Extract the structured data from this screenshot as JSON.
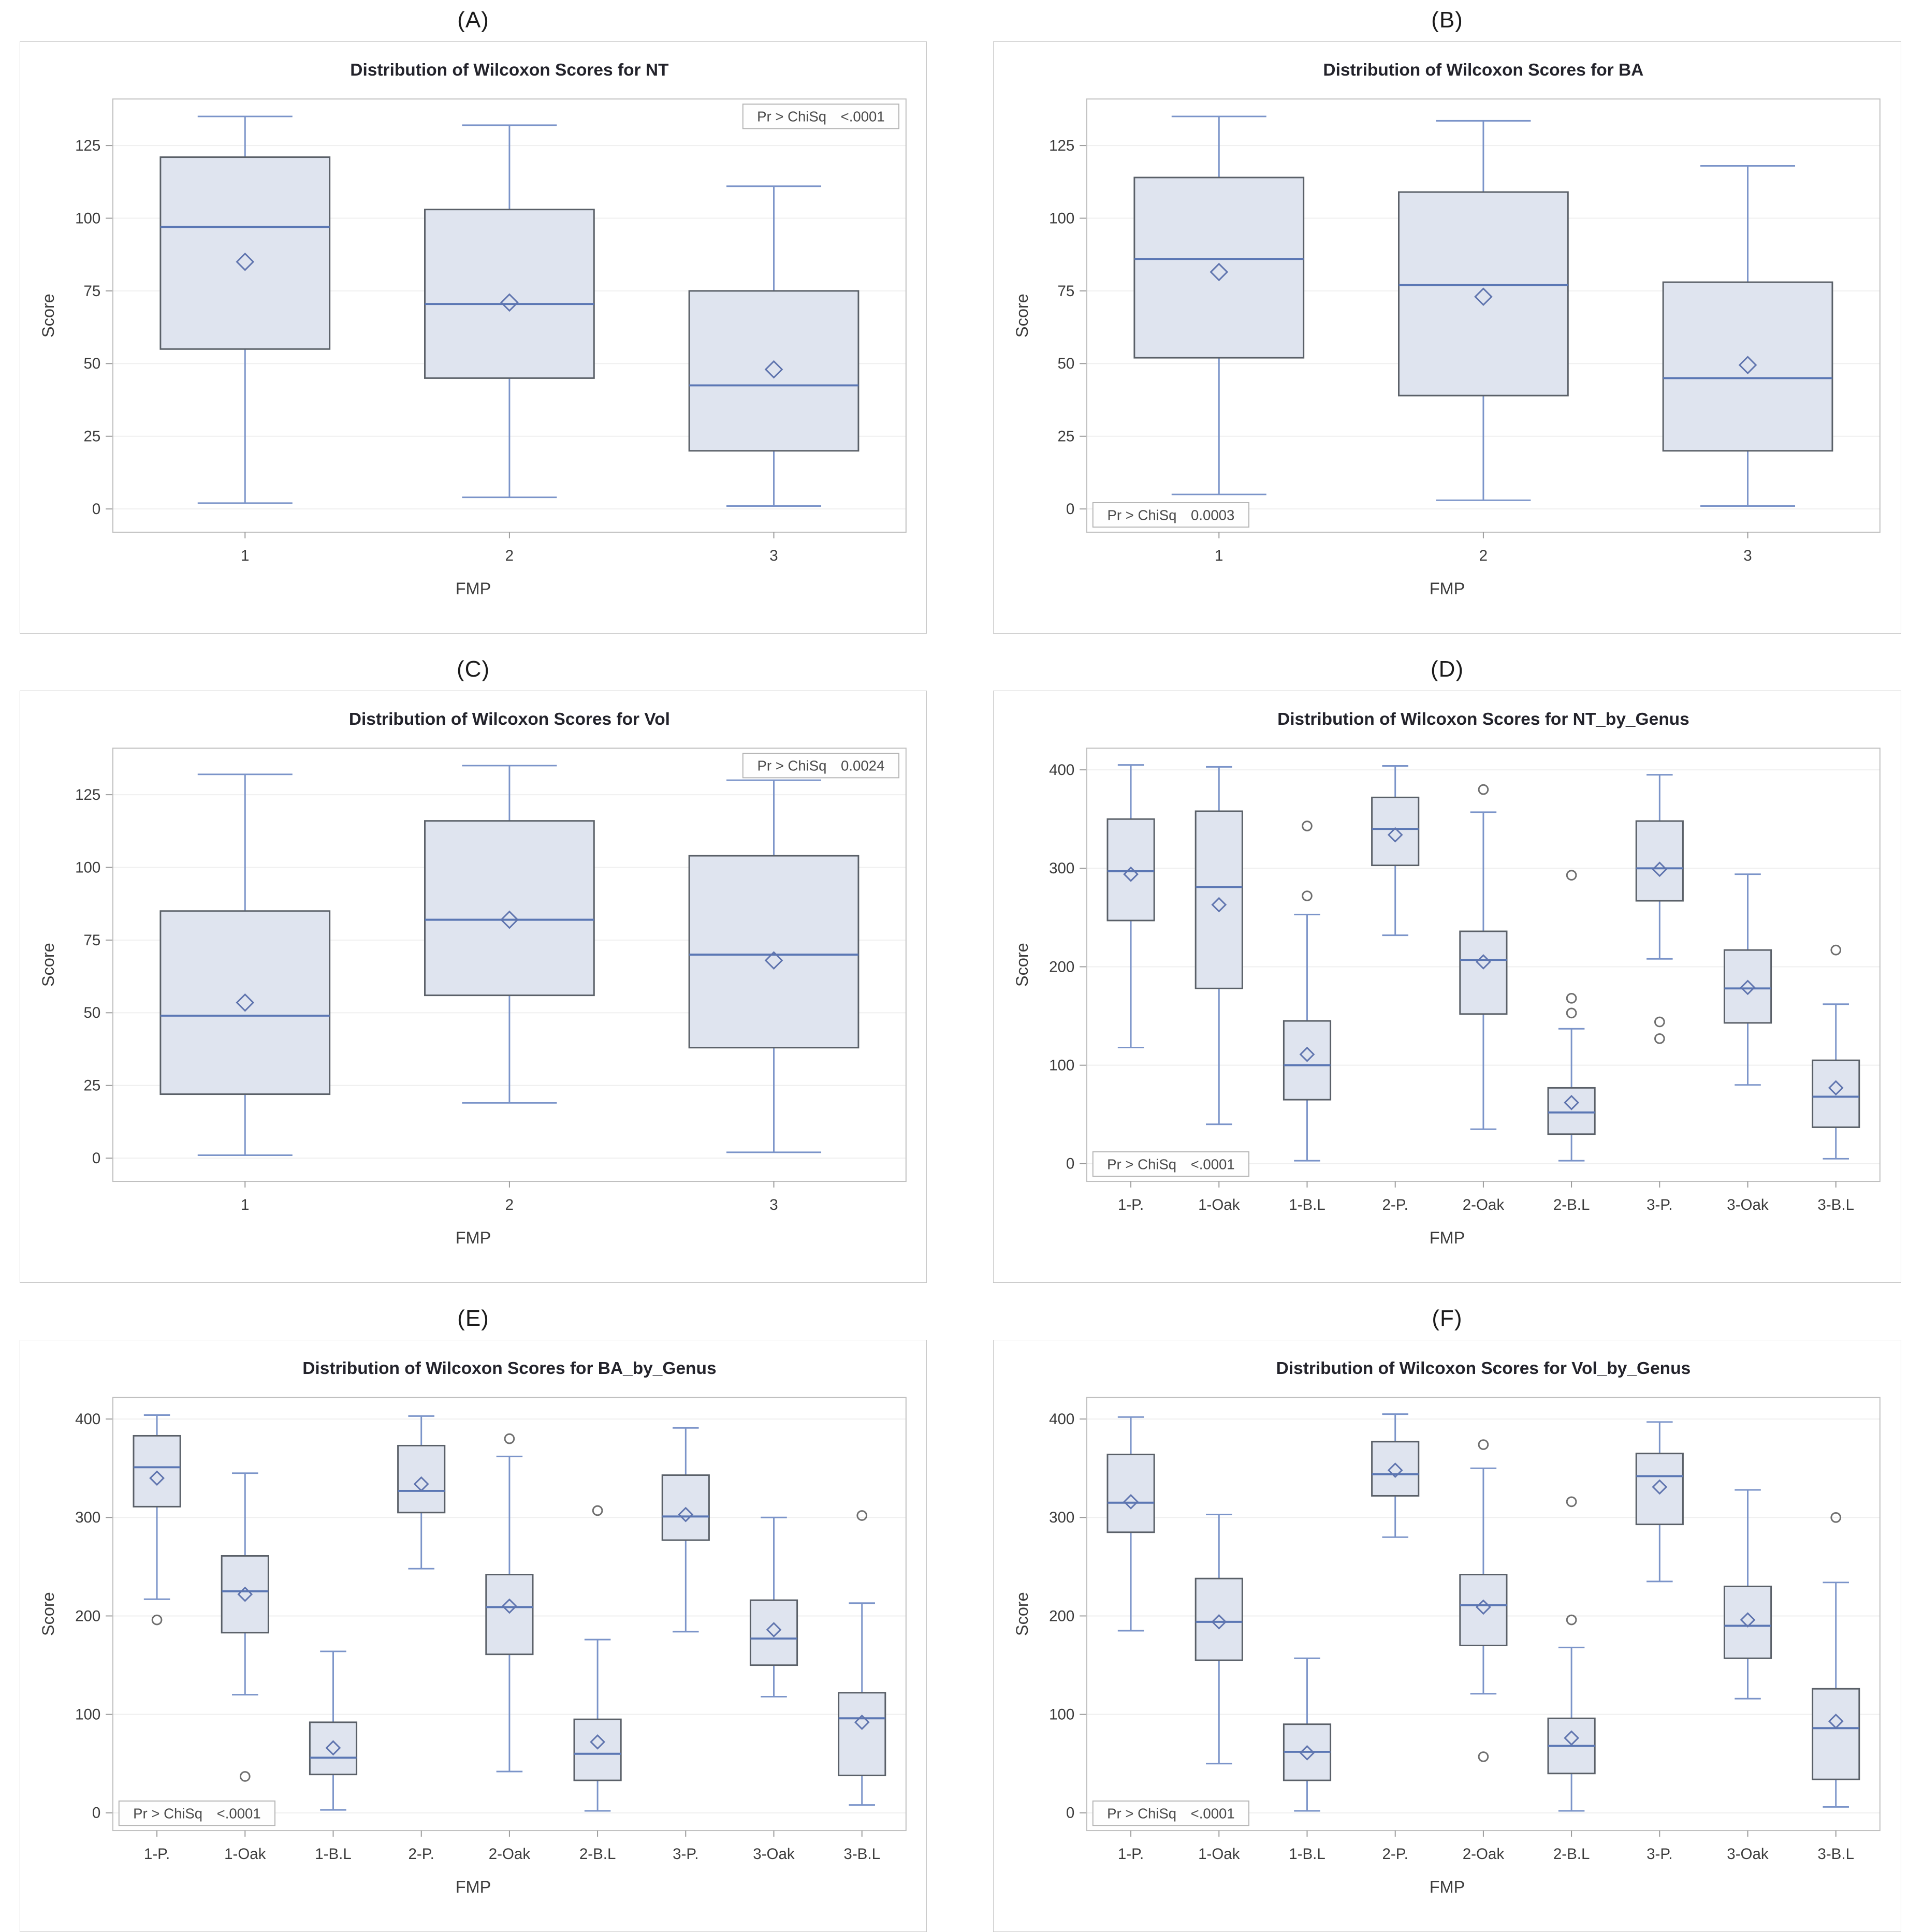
{
  "style": {
    "box_fill": "#dfe4ef",
    "box_stroke": "#5a6068",
    "median_blue": "#5b77b4",
    "whisker_blue": "#7b94c9",
    "mean_stroke": "#5f74ae",
    "outlier_stroke": "#6e6e6e",
    "grid_line": "#efefef",
    "frame_line": "#bfbfbf",
    "tick_mark": "#9a9a9a",
    "axis_text": "#3c3c3c",
    "title_text": "#23232b",
    "stat_border": "#b5b5b5",
    "stat_bg": "#fefefe",
    "stat_text": "#4a4a4a"
  },
  "chart_data": [
    {
      "tag": "(A)",
      "type": "box",
      "title": "Distribution of Wilcoxon Scores for NT",
      "xlabel": "FMP",
      "ylabel": "Score",
      "yticks": [
        0,
        25,
        50,
        75,
        100,
        125
      ],
      "ylim": [
        -8,
        141
      ],
      "stat_label": "Pr > ChiSq",
      "stat_value": "<.0001",
      "stat_pos": "top-right",
      "categories": [
        "1",
        "2",
        "3"
      ],
      "boxes": [
        {
          "low": 2,
          "q1": 55,
          "median": 97,
          "q3": 121,
          "high": 135,
          "mean": 85,
          "outliers": []
        },
        {
          "low": 4,
          "q1": 45,
          "median": 70.5,
          "q3": 103,
          "high": 132,
          "mean": 71,
          "outliers": []
        },
        {
          "low": 1,
          "q1": 20,
          "median": 42.5,
          "q3": 75,
          "high": 111,
          "mean": 48,
          "outliers": []
        }
      ]
    },
    {
      "tag": "(B)",
      "type": "box",
      "title": "Distribution of Wilcoxon Scores for BA",
      "xlabel": "FMP",
      "ylabel": "Score",
      "yticks": [
        0,
        25,
        50,
        75,
        100,
        125
      ],
      "ylim": [
        -8,
        141
      ],
      "stat_label": "Pr > ChiSq",
      "stat_value": "0.0003",
      "stat_pos": "bottom-left",
      "categories": [
        "1",
        "2",
        "3"
      ],
      "boxes": [
        {
          "low": 5,
          "q1": 52,
          "median": 86,
          "q3": 114,
          "high": 135,
          "mean": 81.5,
          "outliers": []
        },
        {
          "low": 3,
          "q1": 39,
          "median": 77,
          "q3": 109,
          "high": 133.5,
          "mean": 73,
          "outliers": []
        },
        {
          "low": 1,
          "q1": 20,
          "median": 45,
          "q3": 78,
          "high": 118,
          "mean": 49.5,
          "outliers": []
        }
      ]
    },
    {
      "tag": "(C)",
      "type": "box",
      "title": "Distribution of Wilcoxon Scores for Vol",
      "xlabel": "FMP",
      "ylabel": "Score",
      "yticks": [
        0,
        25,
        50,
        75,
        100,
        125
      ],
      "ylim": [
        -8,
        141
      ],
      "stat_label": "Pr > ChiSq",
      "stat_value": "0.0024",
      "stat_pos": "top-right",
      "categories": [
        "1",
        "2",
        "3"
      ],
      "boxes": [
        {
          "low": 1,
          "q1": 22,
          "median": 49,
          "q3": 85,
          "high": 132,
          "mean": 53.5,
          "outliers": []
        },
        {
          "low": 19,
          "q1": 56,
          "median": 82,
          "q3": 116,
          "high": 135,
          "mean": 82,
          "outliers": []
        },
        {
          "low": 2,
          "q1": 38,
          "median": 70,
          "q3": 104,
          "high": 130,
          "mean": 68,
          "outliers": []
        }
      ]
    },
    {
      "tag": "(D)",
      "type": "box",
      "title": "Distribution of Wilcoxon Scores for NT_by_Genus",
      "xlabel": "FMP",
      "ylabel": "Score",
      "yticks": [
        0,
        100,
        200,
        300,
        400
      ],
      "ylim": [
        -18,
        422
      ],
      "stat_label": "Pr > ChiSq",
      "stat_value": "<.0001",
      "stat_pos": "bottom-left",
      "categories": [
        "1-P.",
        "1-Oak",
        "1-B.L",
        "2-P.",
        "2-Oak",
        "2-B.L",
        "3-P.",
        "3-Oak",
        "3-B.L"
      ],
      "boxes": [
        {
          "low": 118,
          "q1": 247,
          "median": 297,
          "q3": 350,
          "high": 405,
          "mean": 294,
          "outliers": []
        },
        {
          "low": 40,
          "q1": 178,
          "median": 281,
          "q3": 358,
          "high": 403,
          "mean": 263,
          "outliers": []
        },
        {
          "low": 3,
          "q1": 65,
          "median": 100,
          "q3": 145,
          "high": 253,
          "mean": 111,
          "outliers": [
            272,
            343
          ]
        },
        {
          "low": 232,
          "q1": 303,
          "median": 340,
          "q3": 372,
          "high": 404,
          "mean": 334,
          "outliers": []
        },
        {
          "low": 35,
          "q1": 152,
          "median": 207,
          "q3": 236,
          "high": 357,
          "mean": 205,
          "outliers": [
            380
          ]
        },
        {
          "low": 3,
          "q1": 30,
          "median": 52,
          "q3": 77,
          "high": 137,
          "mean": 62,
          "outliers": [
            153,
            168,
            293
          ]
        },
        {
          "low": 208,
          "q1": 267,
          "median": 300,
          "q3": 348,
          "high": 395,
          "mean": 299,
          "outliers": [
            127,
            144
          ]
        },
        {
          "low": 80,
          "q1": 143,
          "median": 178,
          "q3": 217,
          "high": 294,
          "mean": 179,
          "outliers": []
        },
        {
          "low": 5,
          "q1": 37,
          "median": 68,
          "q3": 105,
          "high": 162,
          "mean": 77,
          "outliers": [
            217
          ]
        }
      ]
    },
    {
      "tag": "(E)",
      "type": "box",
      "title": "Distribution of Wilcoxon Scores for BA_by_Genus",
      "xlabel": "FMP",
      "ylabel": "Score",
      "yticks": [
        0,
        100,
        200,
        300,
        400
      ],
      "ylim": [
        -18,
        422
      ],
      "stat_label": "Pr > ChiSq",
      "stat_value": "<.0001",
      "stat_pos": "bottom-left",
      "categories": [
        "1-P.",
        "1-Oak",
        "1-B.L",
        "2-P.",
        "2-Oak",
        "2-B.L",
        "3-P.",
        "3-Oak",
        "3-B.L"
      ],
      "boxes": [
        {
          "low": 217,
          "q1": 311,
          "median": 351,
          "q3": 383,
          "high": 404,
          "mean": 340,
          "outliers": [
            196
          ]
        },
        {
          "low": 120,
          "q1": 183,
          "median": 225,
          "q3": 261,
          "high": 345,
          "mean": 222,
          "outliers": [
            37
          ]
        },
        {
          "low": 3,
          "q1": 39,
          "median": 56,
          "q3": 92,
          "high": 164,
          "mean": 66,
          "outliers": []
        },
        {
          "low": 248,
          "q1": 305,
          "median": 327,
          "q3": 373,
          "high": 403,
          "mean": 334,
          "outliers": []
        },
        {
          "low": 42,
          "q1": 161,
          "median": 209,
          "q3": 242,
          "high": 362,
          "mean": 210,
          "outliers": [
            380
          ]
        },
        {
          "low": 2,
          "q1": 33,
          "median": 60,
          "q3": 95,
          "high": 176,
          "mean": 72,
          "outliers": [
            307
          ]
        },
        {
          "low": 184,
          "q1": 277,
          "median": 301,
          "q3": 343,
          "high": 391,
          "mean": 303,
          "outliers": []
        },
        {
          "low": 118,
          "q1": 150,
          "median": 177,
          "q3": 216,
          "high": 300,
          "mean": 186,
          "outliers": []
        },
        {
          "low": 8,
          "q1": 38,
          "median": 96,
          "q3": 122,
          "high": 213,
          "mean": 92,
          "outliers": [
            302
          ]
        }
      ]
    },
    {
      "tag": "(F)",
      "type": "box",
      "title": "Distribution of Wilcoxon Scores for Vol_by_Genus",
      "xlabel": "FMP",
      "ylabel": "Score",
      "yticks": [
        0,
        100,
        200,
        300,
        400
      ],
      "ylim": [
        -18,
        422
      ],
      "stat_label": "Pr > ChiSq",
      "stat_value": "<.0001",
      "stat_pos": "bottom-left",
      "categories": [
        "1-P.",
        "1-Oak",
        "1-B.L",
        "2-P.",
        "2-Oak",
        "2-B.L",
        "3-P.",
        "3-Oak",
        "3-B.L"
      ],
      "boxes": [
        {
          "low": 185,
          "q1": 285,
          "median": 315,
          "q3": 364,
          "high": 402,
          "mean": 316,
          "outliers": []
        },
        {
          "low": 50,
          "q1": 155,
          "median": 194,
          "q3": 238,
          "high": 303,
          "mean": 194,
          "outliers": []
        },
        {
          "low": 2,
          "q1": 33,
          "median": 62,
          "q3": 90,
          "high": 157,
          "mean": 61,
          "outliers": []
        },
        {
          "low": 280,
          "q1": 322,
          "median": 344,
          "q3": 377,
          "high": 405,
          "mean": 348,
          "outliers": []
        },
        {
          "low": 121,
          "q1": 170,
          "median": 211,
          "q3": 242,
          "high": 350,
          "mean": 209,
          "outliers": [
            57,
            374
          ]
        },
        {
          "low": 2,
          "q1": 40,
          "median": 68,
          "q3": 96,
          "high": 168,
          "mean": 76,
          "outliers": [
            196,
            316
          ]
        },
        {
          "low": 235,
          "q1": 293,
          "median": 342,
          "q3": 365,
          "high": 397,
          "mean": 331,
          "outliers": []
        },
        {
          "low": 116,
          "q1": 157,
          "median": 190,
          "q3": 230,
          "high": 328,
          "mean": 196,
          "outliers": []
        },
        {
          "low": 6,
          "q1": 34,
          "median": 86,
          "q3": 126,
          "high": 234,
          "mean": 93,
          "outliers": [
            300
          ]
        }
      ]
    }
  ]
}
